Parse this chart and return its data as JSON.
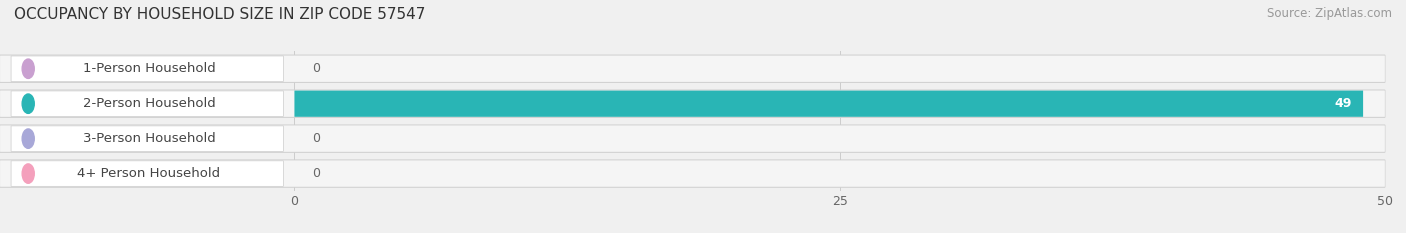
{
  "title": "OCCUPANCY BY HOUSEHOLD SIZE IN ZIP CODE 57547",
  "source": "Source: ZipAtlas.com",
  "categories": [
    "1-Person Household",
    "2-Person Household",
    "3-Person Household",
    "4+ Person Household"
  ],
  "values": [
    0,
    49,
    0,
    0
  ],
  "bar_colors": [
    "#c9a0d0",
    "#29b5b5",
    "#a8a8d8",
    "#f4a0bc"
  ],
  "max_value": 50,
  "xticks": [
    0,
    25,
    50
  ],
  "background_color": "#f0f0f0",
  "row_bg_color": "#e8e8e8",
  "row_bg_inner": "#f8f8f8",
  "title_fontsize": 11,
  "source_fontsize": 8.5,
  "label_fontsize": 9.5,
  "value_fontsize": 9,
  "figsize": [
    14.06,
    2.33
  ]
}
